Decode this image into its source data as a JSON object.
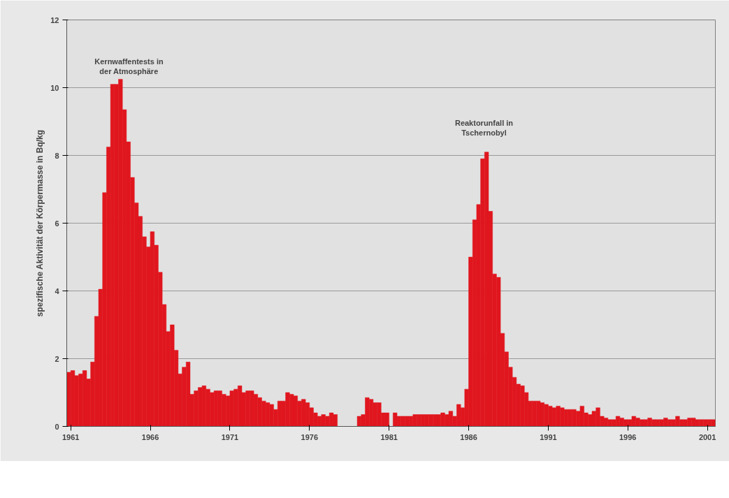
{
  "chart_data": {
    "type": "bar",
    "ylabel": "spezifische Aktivität der Körpermasse in Bq/kg",
    "x": [
      1960.875,
      1961.125,
      1961.375,
      1961.625,
      1961.875,
      1962.125,
      1962.375,
      1962.625,
      1962.875,
      1963.125,
      1963.375,
      1963.625,
      1963.875,
      1964.125,
      1964.375,
      1964.625,
      1964.875,
      1965.125,
      1965.375,
      1965.625,
      1965.875,
      1966.125,
      1966.375,
      1966.625,
      1966.875,
      1967.125,
      1967.375,
      1967.625,
      1967.875,
      1968.125,
      1968.375,
      1968.625,
      1968.875,
      1969.125,
      1969.375,
      1969.625,
      1969.875,
      1970.125,
      1970.375,
      1970.625,
      1970.875,
      1971.125,
      1971.375,
      1971.625,
      1971.875,
      1972.125,
      1972.375,
      1972.625,
      1972.875,
      1973.125,
      1973.375,
      1973.625,
      1973.875,
      1974.125,
      1974.375,
      1974.625,
      1974.875,
      1975.125,
      1975.375,
      1975.625,
      1975.875,
      1976.125,
      1976.375,
      1976.625,
      1976.875,
      1977.125,
      1977.375,
      1977.625,
      1977.875,
      1978.125,
      1978.375,
      1978.625,
      1978.875,
      1979.125,
      1979.375,
      1979.625,
      1979.875,
      1980.125,
      1980.375,
      1980.625,
      1980.875,
      1981.125,
      1981.375,
      1981.625,
      1981.875,
      1982.125,
      1982.375,
      1982.625,
      1982.875,
      1983.125,
      1983.375,
      1983.625,
      1983.875,
      1984.125,
      1984.375,
      1984.625,
      1984.875,
      1985.125,
      1985.375,
      1985.625,
      1985.875,
      1986.125,
      1986.375,
      1986.625,
      1986.875,
      1987.125,
      1987.375,
      1987.625,
      1987.875,
      1988.125,
      1988.375,
      1988.625,
      1988.875,
      1989.125,
      1989.375,
      1989.625,
      1989.875,
      1990.125,
      1990.375,
      1990.625,
      1990.875,
      1991.125,
      1991.375,
      1991.625,
      1991.875,
      1992.125,
      1992.375,
      1992.625,
      1992.875,
      1993.125,
      1993.375,
      1993.625,
      1993.875,
      1994.125,
      1994.375,
      1994.625,
      1994.875,
      1995.125,
      1995.375,
      1995.625,
      1995.875,
      1996.125,
      1996.375,
      1996.625,
      1996.875,
      1997.125,
      1997.375,
      1997.625,
      1997.875,
      1998.125,
      1998.375,
      1998.625,
      1998.875,
      1999.125,
      1999.375,
      1999.625,
      1999.875,
      2000.125,
      2000.375,
      2000.625,
      2000.875,
      2001.125,
      2001.375
    ],
    "values": [
      1.6,
      1.65,
      1.5,
      1.55,
      1.65,
      1.4,
      1.9,
      3.25,
      4.05,
      6.9,
      8.25,
      10.1,
      10.1,
      10.25,
      9.35,
      8.4,
      7.35,
      6.6,
      6.2,
      5.6,
      5.3,
      5.75,
      5.35,
      4.55,
      3.6,
      2.8,
      3.0,
      2.25,
      1.55,
      1.75,
      1.9,
      0.95,
      1.05,
      1.15,
      1.2,
      1.1,
      1.0,
      1.05,
      1.05,
      0.95,
      0.9,
      1.05,
      1.1,
      1.2,
      1.0,
      1.05,
      1.05,
      0.95,
      0.85,
      0.75,
      0.7,
      0.65,
      0.5,
      0.75,
      0.75,
      1.0,
      0.95,
      0.9,
      0.75,
      0.8,
      0.7,
      0.55,
      0.4,
      0.3,
      0.35,
      0.3,
      0.4,
      0.35,
      0,
      0,
      0,
      0,
      0,
      0.3,
      0.35,
      0.85,
      0.8,
      0.7,
      0.7,
      0.4,
      0.4,
      0,
      0.4,
      0.3,
      0.3,
      0.3,
      0.3,
      0.35,
      0.35,
      0.35,
      0.35,
      0.35,
      0.35,
      0.35,
      0.4,
      0.35,
      0.45,
      0.3,
      0.65,
      0.55,
      1.1,
      5.0,
      6.1,
      6.55,
      7.9,
      8.1,
      6.35,
      4.5,
      4.4,
      2.75,
      2.2,
      1.75,
      1.45,
      1.25,
      1.2,
      1.0,
      0.75,
      0.75,
      0.75,
      0.7,
      0.65,
      0.6,
      0.55,
      0.6,
      0.55,
      0.5,
      0.5,
      0.5,
      0.45,
      0.6,
      0.4,
      0.35,
      0.45,
      0.55,
      0.3,
      0.25,
      0.2,
      0.2,
      0.3,
      0.25,
      0.2,
      0.2,
      0.3,
      0.25,
      0.2,
      0.2,
      0.25,
      0.2,
      0.2,
      0.2,
      0.25,
      0.2,
      0.2,
      0.3,
      0.2,
      0.2,
      0.25,
      0.25,
      0.2,
      0.2,
      0.2,
      0.2,
      0.2
    ],
    "color": "#e0161e",
    "xlim": [
      1960.75,
      2001.5
    ],
    "xticks": [
      1961,
      1966,
      1971,
      1976,
      1981,
      1986,
      1991,
      1996,
      2001
    ],
    "ylim": [
      0,
      12
    ],
    "yticks": [
      0,
      2,
      4,
      6,
      8,
      10,
      12
    ],
    "grid": "y",
    "annotations": [
      "Kernwaffentests in\nder Atmosphäre",
      "Reaktorunfall in\nTschernobyl"
    ]
  }
}
